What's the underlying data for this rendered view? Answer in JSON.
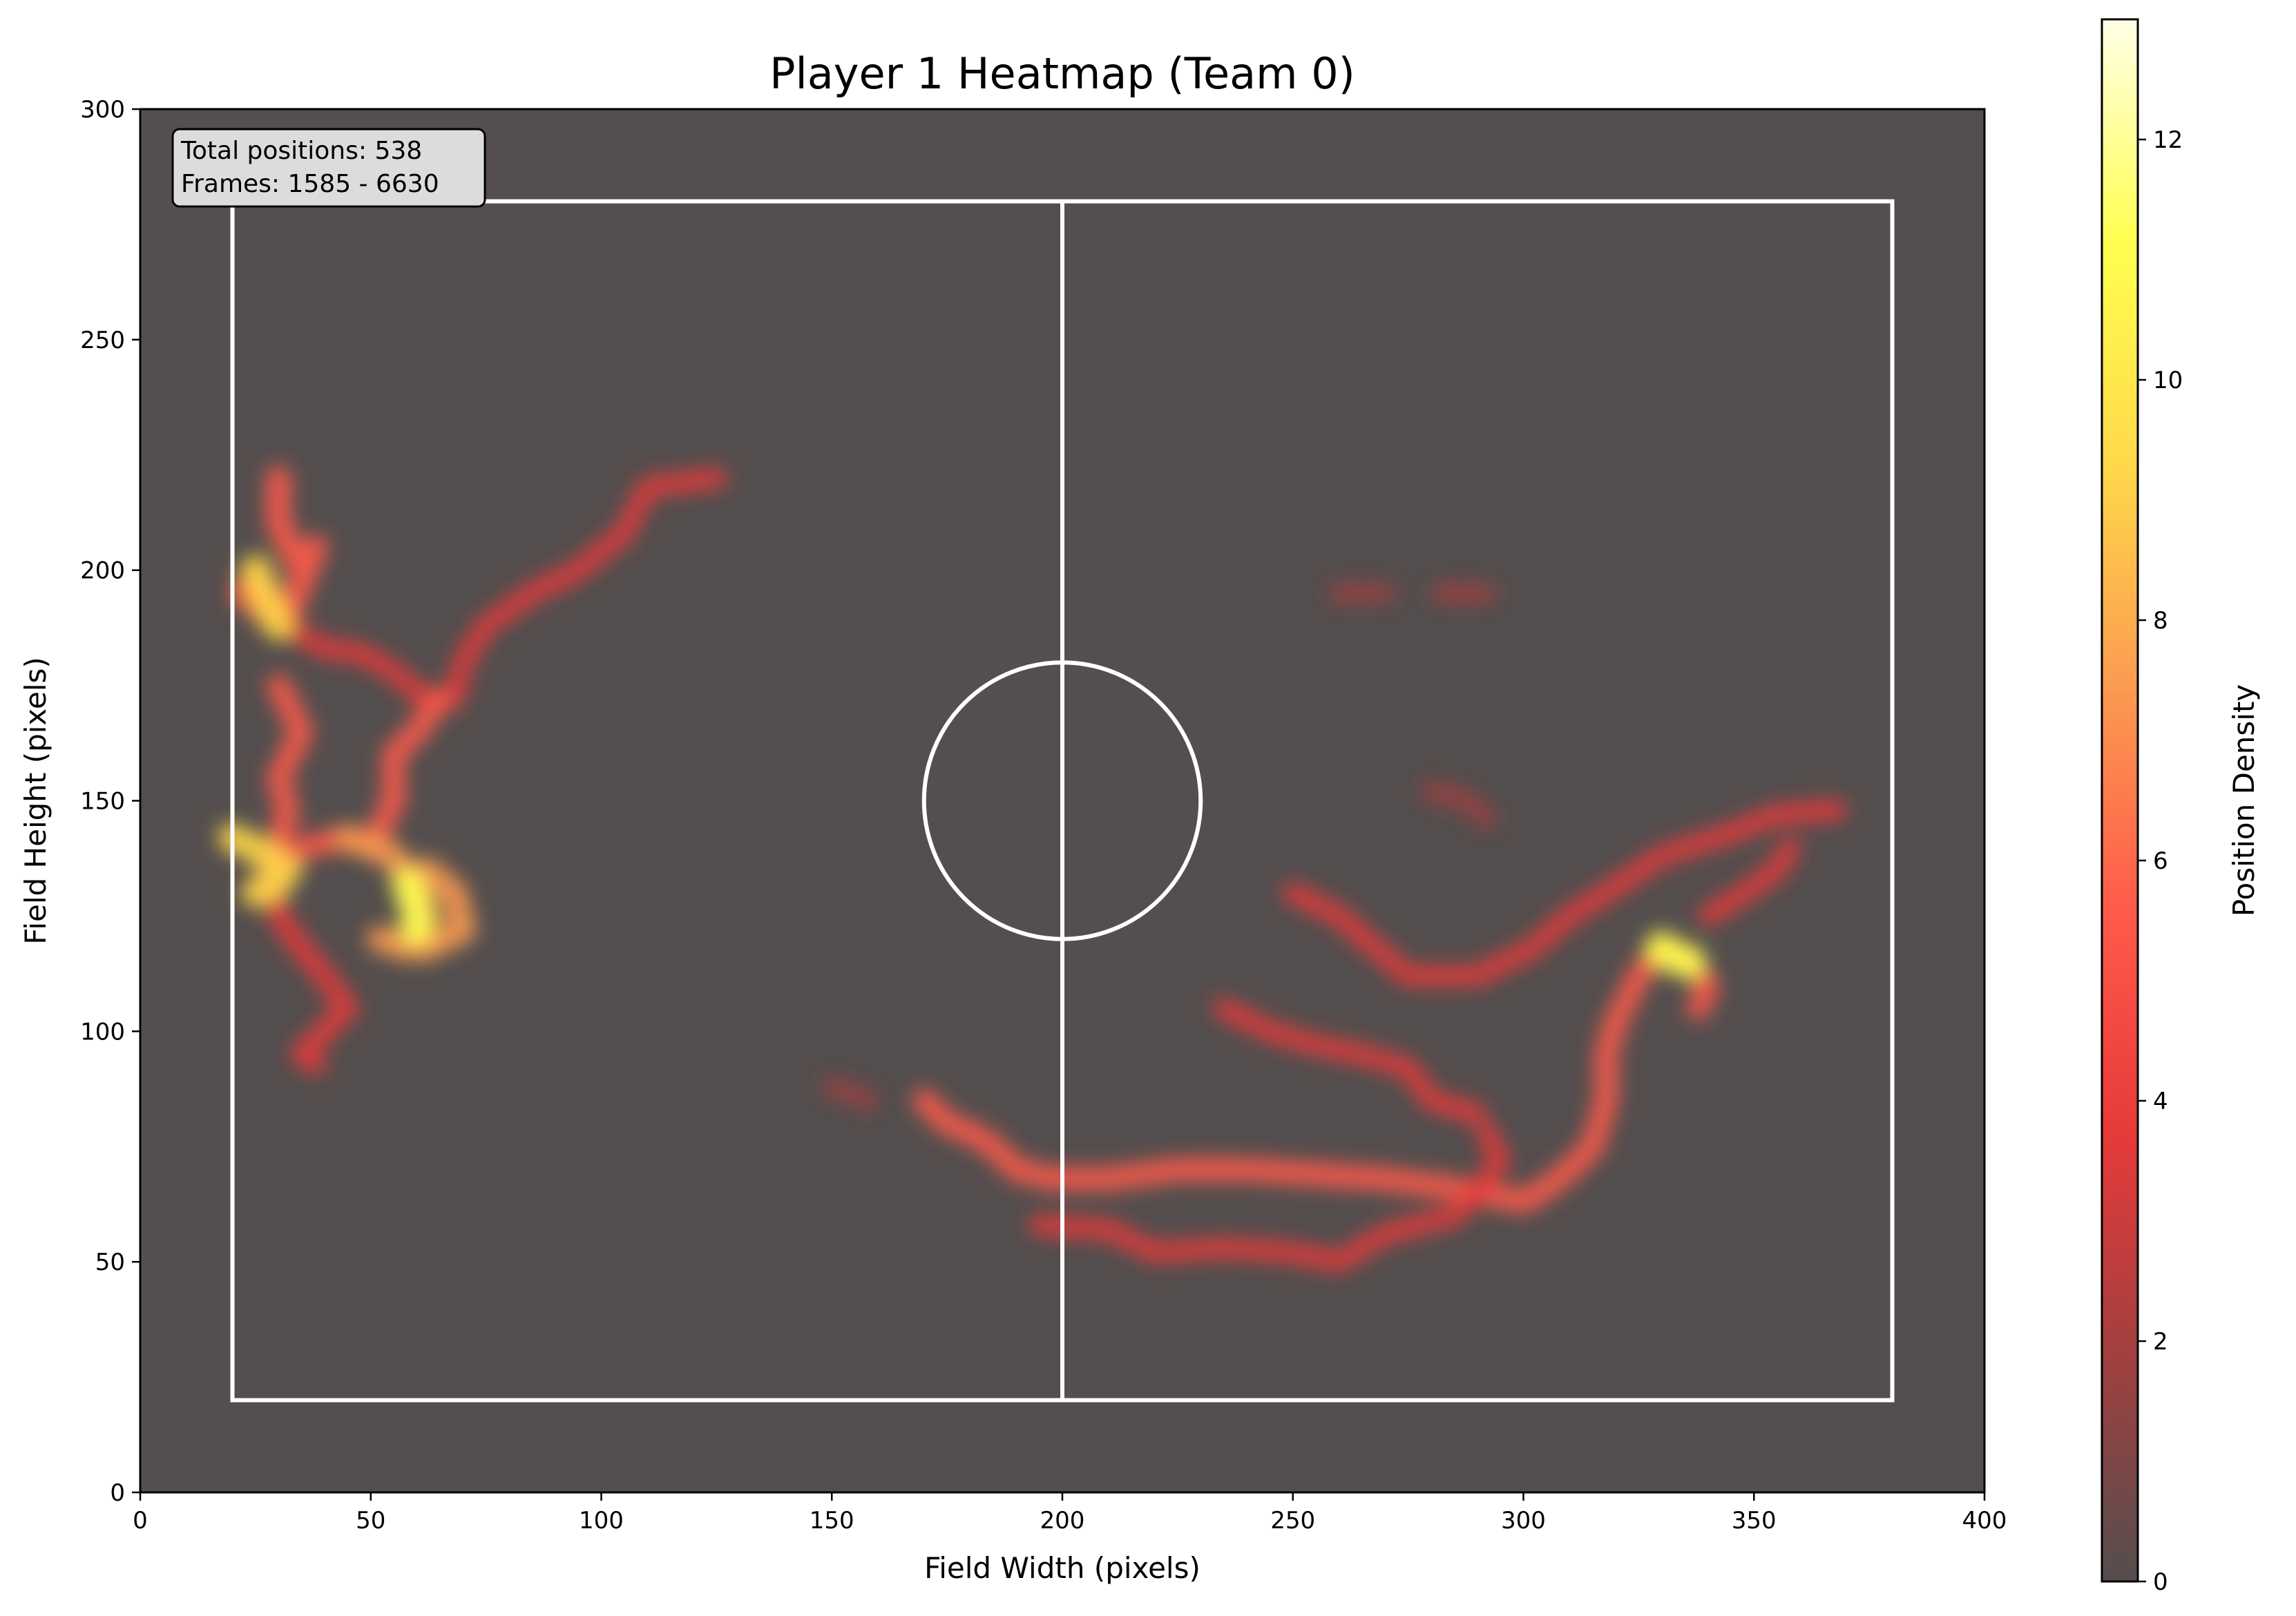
{
  "chart_data": {
    "type": "heatmap",
    "title": "Player 1 Heatmap (Team 0)",
    "xlabel": "Field Width (pixels)",
    "ylabel": "Field Height (pixels)",
    "xlim": [
      0,
      400
    ],
    "ylim": [
      0,
      300
    ],
    "xticks": [
      0,
      50,
      100,
      150,
      200,
      250,
      300,
      350,
      400
    ],
    "yticks": [
      0,
      50,
      100,
      150,
      200,
      250,
      300
    ],
    "grid": false,
    "background_color": "#544e4e",
    "colorbar": {
      "label": "Position Density",
      "range": [
        0,
        13
      ],
      "ticks": [
        0,
        2,
        4,
        6,
        8,
        10,
        12
      ],
      "colors": [
        "#544e4e",
        "#a0403f",
        "#e63a3a",
        "#ff5a4a",
        "#fb9a50",
        "#ffd84a",
        "#ffff50",
        "#ffffe6"
      ]
    },
    "annotation": {
      "line1": "Total positions: 538",
      "line2": "Frames: 1585 - 6630"
    },
    "field": {
      "boundary": [
        20,
        20,
        380,
        280
      ],
      "center_line_x": 200,
      "center_circle": {
        "cx": 200,
        "cy": 150,
        "r": 30
      },
      "line_color": "#ffffff"
    },
    "density_paths": [
      {
        "points": [
          [
            30,
            220
          ],
          [
            30,
            210
          ],
          [
            35,
            200
          ],
          [
            38,
            205
          ],
          [
            32,
            190
          ],
          [
            25,
            198
          ],
          [
            22,
            195
          ],
          [
            28,
            190
          ]
        ],
        "intensity": 6
      },
      {
        "points": [
          [
            28,
            190
          ],
          [
            40,
            183
          ],
          [
            48,
            182
          ],
          [
            55,
            178
          ],
          [
            62,
            172
          ],
          [
            68,
            172
          ],
          [
            70,
            180
          ],
          [
            75,
            188
          ],
          [
            85,
            195
          ],
          [
            95,
            200
          ],
          [
            105,
            208
          ],
          [
            110,
            218
          ],
          [
            125,
            220
          ]
        ],
        "intensity": 3
      },
      {
        "points": [
          [
            30,
            175
          ],
          [
            35,
            165
          ],
          [
            30,
            155
          ],
          [
            32,
            148
          ],
          [
            30,
            140
          ],
          [
            28,
            135
          ],
          [
            36,
            140
          ],
          [
            45,
            142
          ],
          [
            50,
            140
          ],
          [
            55,
            150
          ],
          [
            55,
            160
          ],
          [
            60,
            165
          ],
          [
            65,
            172
          ]
        ],
        "intensity": 5
      },
      {
        "points": [
          [
            28,
            135
          ],
          [
            30,
            125
          ],
          [
            35,
            118
          ],
          [
            40,
            112
          ],
          [
            45,
            105
          ],
          [
            40,
            100
          ],
          [
            35,
            95
          ],
          [
            38,
            93
          ]
        ],
        "intensity": 4
      },
      {
        "points": [
          [
            45,
            142
          ],
          [
            55,
            138
          ],
          [
            60,
            130
          ],
          [
            62,
            125
          ],
          [
            58,
            118
          ],
          [
            52,
            120
          ],
          [
            62,
            118
          ],
          [
            70,
            122
          ],
          [
            68,
            130
          ],
          [
            62,
            135
          ]
        ],
        "intensity": 7
      },
      {
        "points": [
          [
            20,
            142
          ],
          [
            28,
            138
          ],
          [
            30,
            132
          ],
          [
            25,
            130
          ],
          [
            32,
            135
          ]
        ],
        "intensity": 9
      },
      {
        "points": [
          [
            170,
            85
          ],
          [
            175,
            80
          ],
          [
            180,
            78
          ],
          [
            185,
            75
          ],
          [
            190,
            70
          ],
          [
            198,
            68
          ],
          [
            210,
            68
          ],
          [
            225,
            70
          ],
          [
            240,
            70
          ],
          [
            255,
            69
          ],
          [
            270,
            68
          ],
          [
            285,
            66
          ],
          [
            300,
            63
          ],
          [
            305,
            66
          ],
          [
            310,
            70
          ],
          [
            315,
            75
          ],
          [
            318,
            85
          ],
          [
            318,
            95
          ],
          [
            320,
            102
          ],
          [
            325,
            112
          ],
          [
            330,
            118
          ],
          [
            335,
            116
          ],
          [
            340,
            110
          ],
          [
            338,
            105
          ]
        ],
        "intensity": 5
      },
      {
        "points": [
          [
            150,
            88
          ],
          [
            158,
            85
          ]
        ],
        "intensity": 2
      },
      {
        "points": [
          [
            195,
            58
          ],
          [
            210,
            57
          ],
          [
            220,
            52
          ],
          [
            235,
            53
          ],
          [
            250,
            52
          ],
          [
            260,
            50
          ],
          [
            270,
            56
          ],
          [
            285,
            60
          ],
          [
            290,
            65
          ],
          [
            295,
            72
          ],
          [
            292,
            78
          ]
        ],
        "intensity": 3
      },
      {
        "points": [
          [
            235,
            105
          ],
          [
            245,
            100
          ],
          [
            255,
            97
          ],
          [
            265,
            95
          ],
          [
            275,
            92
          ],
          [
            280,
            85
          ],
          [
            290,
            82
          ]
        ],
        "intensity": 3
      },
      {
        "points": [
          [
            250,
            130
          ],
          [
            260,
            125
          ],
          [
            268,
            118
          ],
          [
            275,
            112
          ],
          [
            290,
            112
          ],
          [
            298,
            116
          ],
          [
            302,
            118
          ],
          [
            310,
            125
          ],
          [
            318,
            130
          ],
          [
            330,
            138
          ],
          [
            345,
            143
          ],
          [
            355,
            147
          ],
          [
            368,
            148
          ]
        ],
        "intensity": 3
      },
      {
        "points": [
          [
            340,
            125
          ],
          [
            348,
            130
          ],
          [
            355,
            135
          ],
          [
            358,
            140
          ]
        ],
        "intensity": 3
      },
      {
        "points": [
          [
            330,
            118
          ],
          [
            333,
            116
          ],
          [
            336,
            115
          ]
        ],
        "intensity": 12
      },
      {
        "points": [
          [
            260,
            195
          ],
          [
            270,
            195
          ]
        ],
        "intensity": 2
      },
      {
        "points": [
          [
            282,
            195
          ],
          [
            292,
            195
          ]
        ],
        "intensity": 2
      },
      {
        "points": [
          [
            280,
            152
          ],
          [
            288,
            150
          ],
          [
            292,
            146
          ]
        ],
        "intensity": 2
      },
      {
        "points": [
          [
            58,
            132
          ],
          [
            60,
            126
          ],
          [
            60,
            122
          ]
        ],
        "intensity": 11
      },
      {
        "points": [
          [
            25,
            200
          ],
          [
            28,
            192
          ],
          [
            30,
            188
          ]
        ],
        "intensity": 10
      }
    ]
  }
}
